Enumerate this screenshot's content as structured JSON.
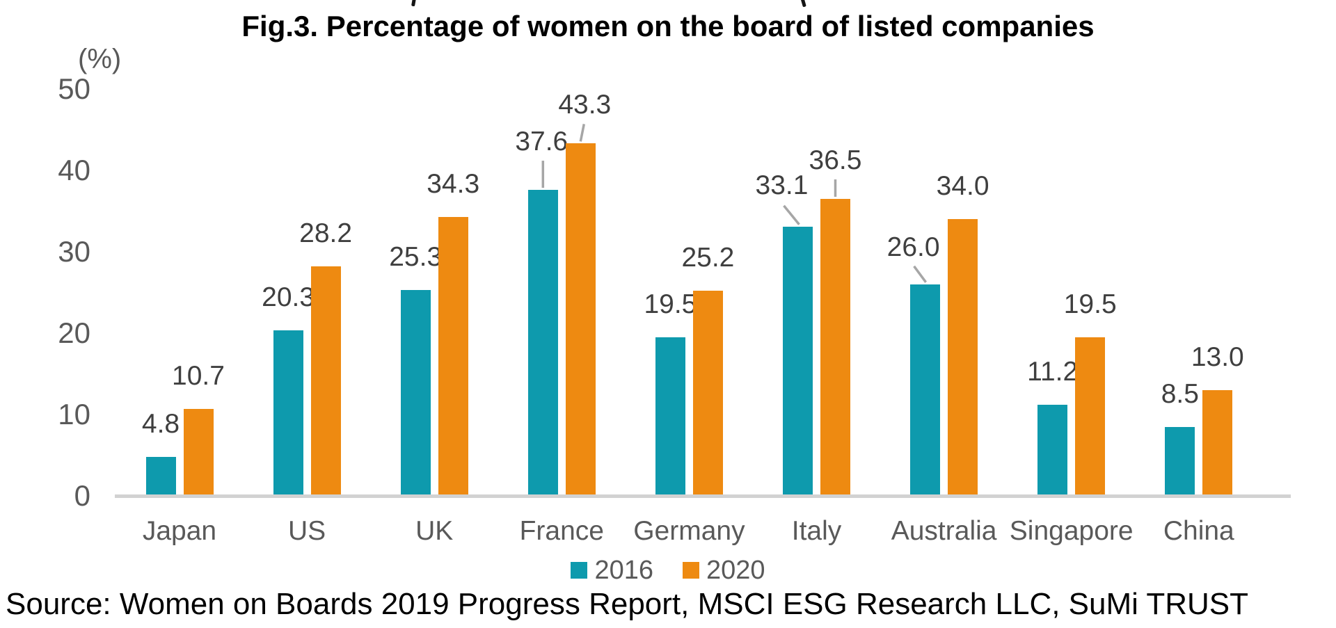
{
  "page": {
    "source": "Source: Women on Boards 2019 Progress Report, MSCI ESG Research LLC, SuMi TRUST"
  },
  "chart_data": {
    "type": "bar",
    "title": "Fig.3. Percentage of women on the board of listed companies",
    "unit_label": "(%)",
    "categories": [
      "Japan",
      "US",
      "UK",
      "France",
      "Germany",
      "Italy",
      "Australia",
      "Singapore",
      "China"
    ],
    "series": [
      {
        "name": "2016",
        "color": "#0e9aad",
        "values": [
          4.8,
          20.3,
          25.3,
          37.6,
          19.5,
          33.1,
          26.0,
          11.2,
          8.5
        ]
      },
      {
        "name": "2020",
        "color": "#ee8a11",
        "values": [
          10.7,
          28.2,
          34.3,
          43.3,
          25.2,
          36.5,
          34.0,
          19.5,
          13.0
        ]
      }
    ],
    "value_label_decimals": 1,
    "y_axis": {
      "min": 0,
      "max": 50,
      "tick_interval": 10,
      "ticks": [
        50,
        40,
        30,
        20,
        10,
        0
      ]
    },
    "legend": [
      {
        "label": "2016",
        "color": "#0e9aad"
      },
      {
        "label": "2020",
        "color": "#ee8a11"
      }
    ],
    "legend_position": "bottom",
    "grid": false,
    "colors": {
      "axis_text": "#595959",
      "value_label_text": "#3f3f3f",
      "baseline": "#d2d2d2",
      "leader_line": "#a6a6a6",
      "title_text": "#000000"
    }
  }
}
